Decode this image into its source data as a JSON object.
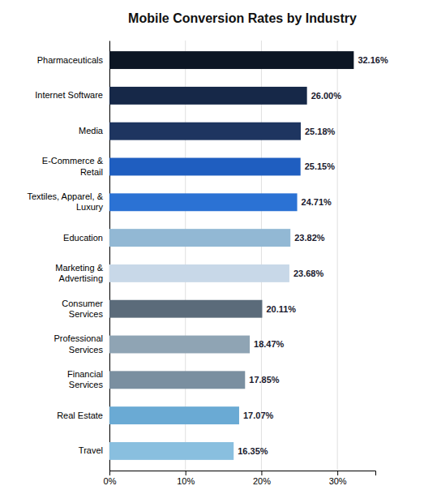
{
  "chart_data": {
    "type": "bar",
    "orientation": "horizontal",
    "title": "Mobile Conversion Rates by Industry",
    "categories": [
      "Travel",
      "Real Estate",
      "Financial\nServices",
      "Professional\nServices",
      "Consumer\nServices",
      "Marketing &\nAdvertising",
      "Education",
      "Textiles, Apparel, &\nLuxury",
      "E-Commerce &\nRetail",
      "Media",
      "Internet Software",
      "Pharmaceuticals"
    ],
    "values": [
      16.35,
      17.07,
      17.85,
      18.47,
      20.11,
      23.68,
      23.82,
      24.71,
      25.15,
      25.18,
      26.0,
      32.16
    ],
    "value_labels": [
      "16.35%",
      "17.07%",
      "17.85%",
      "18.47%",
      "20.11%",
      "23.68%",
      "23.82%",
      "24.71%",
      "25.15%",
      "25.18%",
      "26.00%",
      "32.16%"
    ],
    "data_labels": true,
    "colors": [
      "#89bfdf",
      "#6aaad4",
      "#7a8fa0",
      "#8fa4b4",
      "#5b6b7a",
      "#c8d8e8",
      "#92b8d4",
      "#2b72d4",
      "#1f5ec0",
      "#1e3560",
      "#162848",
      "#0c1624"
    ],
    "xlim": [
      0,
      35
    ],
    "xticks": [
      {
        "value": 0,
        "label": "0%"
      },
      {
        "value": 10,
        "label": "10%"
      },
      {
        "value": 20,
        "label": "20%"
      },
      {
        "value": 30,
        "label": "30%"
      }
    ],
    "grid": true
  }
}
